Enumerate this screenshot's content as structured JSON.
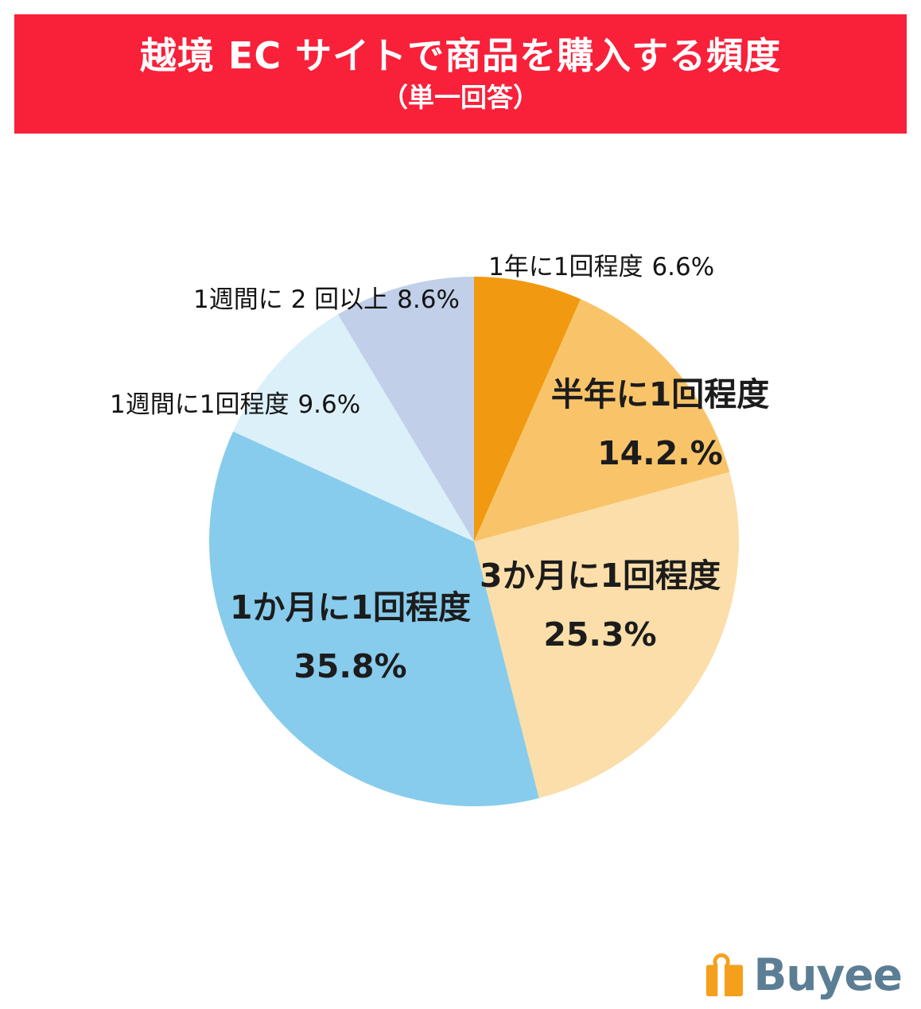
{
  "header": {
    "title": "越境 EC サイトで商品を購入する頻度",
    "subtitle": "（単一回答）",
    "bg_color": "#F9203A",
    "text_color": "#FFFFFF"
  },
  "chart_data": {
    "type": "pie",
    "title": "越境 EC サイトで商品を購入する頻度（単一回答）",
    "unit": "%",
    "start_angle": "top",
    "direction": "clockwise",
    "segments": [
      {
        "label": "1年に1回程度",
        "value": 6.6,
        "pct_text": "6.6%",
        "color": "#F19910",
        "label_placement": "outside-top-right"
      },
      {
        "label": "半年に1回程度",
        "value": 14.2,
        "pct_text": "14.2.%",
        "color": "#F9C469",
        "label_placement": "inside"
      },
      {
        "label": "3か月に1回程度",
        "value": 25.3,
        "pct_text": "25.3%",
        "color": "#FBDEA9",
        "label_placement": "inside"
      },
      {
        "label": "1か月に1回程度",
        "value": 35.8,
        "pct_text": "35.8%",
        "color": "#87CCEC",
        "label_placement": "inside"
      },
      {
        "label": "1週間に1回程度",
        "value": 9.6,
        "pct_text": "9.6%",
        "color": "#DCF0F9",
        "label_placement": "outside-left"
      },
      {
        "label": "1週間に 2 回以上",
        "value": 8.6,
        "pct_text": "8.6%",
        "color": "#C1CFE9",
        "label_placement": "outside-top-left"
      }
    ]
  },
  "footer": {
    "logo_text": "Buyee",
    "logo_text_color": "#5C7E95",
    "logo_box_color": "#F5A01D"
  }
}
